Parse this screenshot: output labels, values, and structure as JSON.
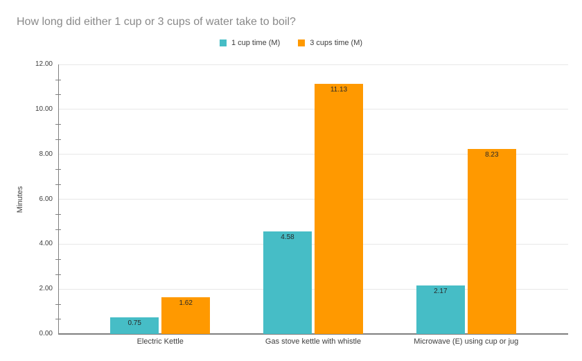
{
  "chart_data": {
    "type": "bar",
    "title": "How long did either 1 cup or 3 cups of water take to boil?",
    "categories": [
      "Electric Kettle",
      "Gas stove kettle with whistle",
      "Microwave (E) using cup or jug"
    ],
    "series": [
      {
        "name": "1 cup time (M)",
        "color": "#46BDC6",
        "values": [
          0.75,
          4.58,
          2.17
        ]
      },
      {
        "name": "3 cups time (M)",
        "color": "#FF9900",
        "values": [
          1.62,
          11.13,
          8.23
        ]
      }
    ],
    "xlabel": "",
    "ylabel": "Minutes",
    "ylim": [
      0,
      12
    ],
    "y_major_step": 2,
    "y_minor_divisions": 3,
    "y_tick_labels": [
      "0.00",
      "2.00",
      "4.00",
      "6.00",
      "8.00",
      "10.00",
      "12.00"
    ],
    "grid": true,
    "legend_position": "top-center",
    "data_labels": "inside-top",
    "value_label_decimals": 2
  },
  "colors": {
    "background": "#ffffff",
    "title_text": "#898989",
    "axis_text": "#3c3c3c",
    "grid_line": "#e7e7e7",
    "axis_line": "#7f7f7f",
    "data_label_text": "#282828"
  }
}
